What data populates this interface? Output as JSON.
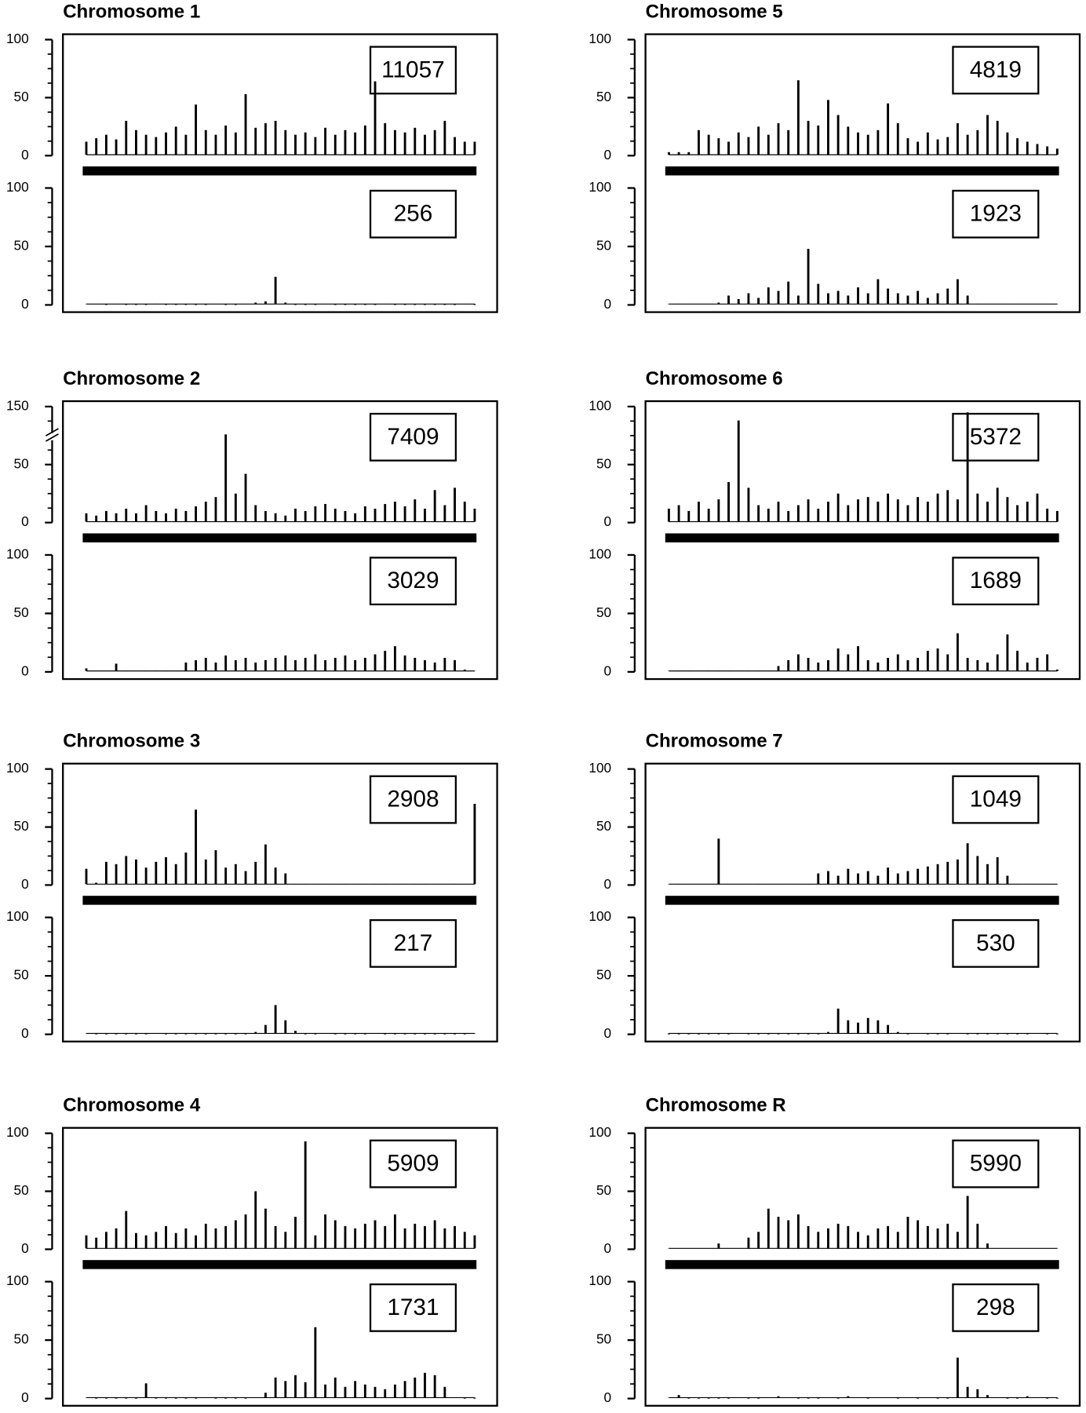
{
  "chart_data": [
    {
      "type": "bar",
      "title": "Chromosome 1",
      "color": "#000000",
      "tracks": [
        {
          "count": 11057,
          "ylim": [
            0,
            100
          ],
          "yticks": [
            0,
            50,
            100
          ],
          "values": [
            12,
            15,
            18,
            14,
            30,
            22,
            18,
            16,
            20,
            25,
            18,
            44,
            22,
            18,
            26,
            20,
            53,
            24,
            28,
            30,
            22,
            18,
            20,
            16,
            24,
            18,
            22,
            20,
            26,
            64,
            28,
            22,
            20,
            24,
            18,
            22,
            30,
            16,
            12,
            12
          ]
        },
        {
          "count": 256,
          "ylim": [
            0,
            100
          ],
          "yticks": [
            0,
            50,
            100
          ],
          "values": [
            1,
            1,
            0,
            1,
            0,
            0,
            0,
            1,
            0,
            0,
            0,
            0,
            0,
            1,
            0,
            0,
            1,
            2,
            3,
            24,
            2,
            0,
            0,
            0,
            1,
            0,
            0,
            0,
            0,
            0,
            1,
            0,
            0,
            0,
            0,
            0,
            0,
            0,
            1,
            0
          ]
        }
      ]
    },
    {
      "type": "bar",
      "title": "Chromosome 5",
      "color": "#000000",
      "tracks": [
        {
          "count": 4819,
          "ylim": [
            0,
            100
          ],
          "yticks": [
            0,
            50,
            100
          ],
          "values": [
            3,
            3,
            3,
            22,
            18,
            15,
            12,
            20,
            16,
            25,
            18,
            28,
            22,
            65,
            30,
            26,
            48,
            35,
            25,
            20,
            18,
            22,
            45,
            28,
            15,
            12,
            20,
            14,
            16,
            28,
            18,
            22,
            35,
            30,
            20,
            15,
            12,
            10,
            8,
            6
          ]
        },
        {
          "count": 1923,
          "ylim": [
            0,
            100
          ],
          "yticks": [
            0,
            50,
            100
          ],
          "values": [
            1,
            1,
            1,
            1,
            1,
            2,
            8,
            5,
            10,
            6,
            15,
            12,
            20,
            8,
            48,
            18,
            10,
            12,
            8,
            15,
            10,
            22,
            14,
            10,
            8,
            12,
            6,
            10,
            14,
            22,
            8,
            1,
            1,
            1,
            1,
            1,
            1,
            1,
            1,
            1
          ]
        }
      ]
    },
    {
      "type": "bar",
      "title": "Chromosome 2",
      "color": "#000000",
      "tracks": [
        {
          "count": 7409,
          "ylim": [
            0,
            150
          ],
          "yticks": [
            0,
            50,
            150
          ],
          "axis_break": true,
          "values": [
            8,
            6,
            10,
            8,
            12,
            8,
            15,
            10,
            8,
            12,
            10,
            14,
            18,
            22,
            102,
            25,
            42,
            15,
            10,
            8,
            6,
            12,
            10,
            14,
            16,
            12,
            10,
            8,
            14,
            12,
            16,
            18,
            14,
            20,
            12,
            28,
            15,
            30,
            18,
            12
          ]
        },
        {
          "count": 3029,
          "ylim": [
            0,
            100
          ],
          "yticks": [
            0,
            50,
            100
          ],
          "values": [
            3,
            1,
            1,
            7,
            1,
            1,
            1,
            1,
            1,
            1,
            8,
            10,
            12,
            8,
            14,
            10,
            12,
            8,
            10,
            12,
            14,
            10,
            12,
            15,
            10,
            12,
            14,
            10,
            12,
            15,
            18,
            22,
            14,
            12,
            10,
            8,
            12,
            10,
            2,
            1
          ]
        }
      ]
    },
    {
      "type": "bar",
      "title": "Chromosome 6",
      "color": "#000000",
      "tracks": [
        {
          "count": 5372,
          "ylim": [
            0,
            100
          ],
          "yticks": [
            0,
            50,
            100
          ],
          "values": [
            12,
            15,
            10,
            18,
            12,
            20,
            35,
            88,
            30,
            15,
            12,
            18,
            10,
            15,
            20,
            12,
            18,
            25,
            15,
            20,
            22,
            18,
            25,
            20,
            15,
            22,
            18,
            25,
            28,
            20,
            95,
            25,
            18,
            30,
            22,
            15,
            18,
            25,
            12,
            10
          ]
        },
        {
          "count": 1689,
          "ylim": [
            0,
            100
          ],
          "yticks": [
            0,
            50,
            100
          ],
          "values": [
            1,
            1,
            1,
            1,
            1,
            1,
            1,
            1,
            1,
            1,
            1,
            5,
            10,
            15,
            12,
            8,
            10,
            20,
            15,
            22,
            10,
            8,
            12,
            15,
            10,
            12,
            18,
            20,
            15,
            33,
            12,
            10,
            8,
            15,
            32,
            18,
            8,
            12,
            15,
            2
          ]
        }
      ]
    },
    {
      "type": "bar",
      "title": "Chromosome 3",
      "color": "#000000",
      "tracks": [
        {
          "count": 2908,
          "ylim": [
            0,
            100
          ],
          "yticks": [
            0,
            50,
            100
          ],
          "values": [
            14,
            2,
            20,
            18,
            25,
            22,
            15,
            20,
            24,
            18,
            28,
            65,
            22,
            30,
            15,
            18,
            12,
            20,
            35,
            15,
            10,
            1,
            1,
            1,
            1,
            1,
            1,
            1,
            1,
            1,
            1,
            1,
            1,
            1,
            1,
            1,
            1,
            1,
            1,
            70
          ]
        },
        {
          "count": 217,
          "ylim": [
            0,
            100
          ],
          "yticks": [
            0,
            50,
            100
          ],
          "values": [
            1,
            0,
            0,
            0,
            0,
            0,
            0,
            1,
            0,
            0,
            0,
            0,
            0,
            0,
            0,
            0,
            0,
            2,
            8,
            25,
            12,
            3,
            0,
            0,
            1,
            0,
            0,
            0,
            0,
            1,
            0,
            0,
            0,
            0,
            0,
            0,
            0,
            0,
            0,
            1
          ]
        }
      ]
    },
    {
      "type": "bar",
      "title": "Chromosome 7",
      "color": "#000000",
      "tracks": [
        {
          "count": 1049,
          "ylim": [
            0,
            100
          ],
          "yticks": [
            0,
            50,
            100
          ],
          "values": [
            1,
            1,
            1,
            1,
            1,
            40,
            1,
            1,
            1,
            1,
            1,
            1,
            1,
            1,
            1,
            10,
            12,
            8,
            14,
            10,
            12,
            8,
            15,
            10,
            12,
            14,
            16,
            18,
            20,
            22,
            36,
            25,
            18,
            24,
            8,
            1,
            1,
            1,
            1,
            1
          ]
        },
        {
          "count": 530,
          "ylim": [
            0,
            100
          ],
          "yticks": [
            0,
            50,
            100
          ],
          "values": [
            0,
            0,
            0,
            0,
            0,
            0,
            0,
            1,
            0,
            0,
            0,
            0,
            0,
            0,
            0,
            0,
            2,
            22,
            12,
            10,
            14,
            12,
            8,
            2,
            0,
            1,
            0,
            0,
            0,
            1,
            0,
            0,
            0,
            0,
            0,
            0,
            0,
            1,
            0,
            0
          ]
        }
      ]
    },
    {
      "type": "bar",
      "title": "Chromosome 4",
      "color": "#000000",
      "tracks": [
        {
          "count": 5909,
          "ylim": [
            0,
            100
          ],
          "yticks": [
            0,
            50,
            100
          ],
          "values": [
            12,
            10,
            15,
            18,
            33,
            14,
            12,
            15,
            20,
            14,
            18,
            12,
            22,
            18,
            20,
            25,
            30,
            50,
            35,
            20,
            15,
            28,
            93,
            12,
            30,
            25,
            20,
            18,
            22,
            25,
            20,
            30,
            18,
            22,
            20,
            25,
            18,
            20,
            15,
            12
          ]
        },
        {
          "count": 1731,
          "ylim": [
            0,
            100
          ],
          "yticks": [
            0,
            50,
            100
          ],
          "values": [
            1,
            0,
            0,
            0,
            0,
            0,
            13,
            0,
            0,
            0,
            0,
            0,
            1,
            0,
            0,
            0,
            0,
            1,
            5,
            18,
            15,
            20,
            14,
            61,
            12,
            18,
            10,
            15,
            12,
            10,
            8,
            12,
            15,
            18,
            22,
            20,
            10,
            1,
            0,
            0
          ]
        }
      ]
    },
    {
      "type": "bar",
      "title": "Chromosome R",
      "color": "#000000",
      "tracks": [
        {
          "count": 5990,
          "ylim": [
            0,
            100
          ],
          "yticks": [
            0,
            50,
            100
          ],
          "values": [
            1,
            1,
            1,
            1,
            1,
            5,
            1,
            1,
            10,
            15,
            35,
            28,
            25,
            30,
            20,
            15,
            18,
            22,
            20,
            15,
            12,
            18,
            20,
            15,
            28,
            25,
            20,
            18,
            22,
            15,
            46,
            22,
            5,
            1,
            1,
            1,
            1,
            1,
            1,
            1
          ]
        },
        {
          "count": 298,
          "ylim": [
            0,
            100
          ],
          "yticks": [
            0,
            50,
            100
          ],
          "values": [
            1,
            3,
            0,
            0,
            0,
            0,
            0,
            1,
            0,
            0,
            1,
            2,
            1,
            0,
            0,
            0,
            1,
            0,
            2,
            1,
            0,
            1,
            1,
            0,
            1,
            0,
            1,
            0,
            0,
            35,
            10,
            8,
            3,
            1,
            0,
            0,
            2,
            1,
            0,
            0
          ]
        }
      ]
    }
  ]
}
